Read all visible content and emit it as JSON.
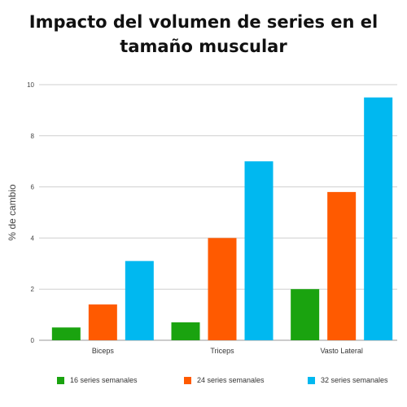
{
  "chart_data": {
    "type": "bar",
    "title_lines": [
      "Impacto del volumen de series en el",
      "tamaño muscular"
    ],
    "xlabel": "",
    "ylabel": "% de cambio",
    "ylim": [
      0,
      10
    ],
    "yticks": [
      0,
      2,
      4,
      6,
      8,
      10
    ],
    "grid": true,
    "legend_position": "bottom",
    "categories": [
      "Biceps",
      "Triceps",
      "Vasto Lateral"
    ],
    "series": [
      {
        "name": "16 series semanales",
        "color": "#1aa30f",
        "values": [
          0.5,
          0.7,
          2.0
        ]
      },
      {
        "name": "24 series semanales",
        "color": "#ff5a00",
        "values": [
          1.4,
          4.0,
          5.8
        ]
      },
      {
        "name": "32 series semanales",
        "color": "#00b8f0",
        "values": [
          3.1,
          7.0,
          9.5
        ]
      }
    ]
  }
}
